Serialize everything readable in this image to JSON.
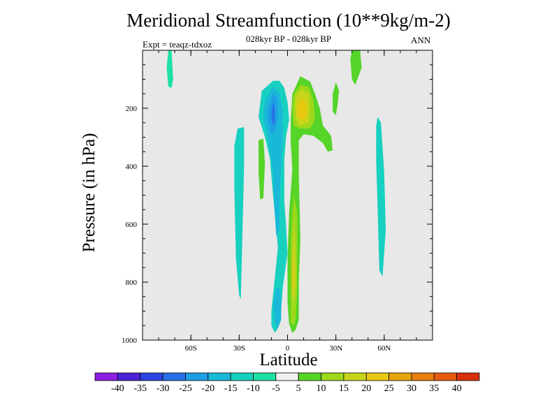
{
  "chart_data": {
    "type": "contour",
    "title": "Meridional Streamfunction (10**9kg/m-2)",
    "subtitle": "028kyr BP - 028kyr BP",
    "experiment": "Expt = teaqz-tdxoz",
    "season": "ANN",
    "xlabel": "Latitude",
    "ylabel": "Pressure (in hPa)",
    "xlim": [
      -90,
      90
    ],
    "ylim": [
      1000,
      0
    ],
    "y_reversed": true,
    "x_ticks": [
      {
        "value": -60,
        "label": "60S"
      },
      {
        "value": -30,
        "label": "30S"
      },
      {
        "value": 0,
        "label": "0"
      },
      {
        "value": 30,
        "label": "30N"
      },
      {
        "value": 60,
        "label": "60N"
      }
    ],
    "y_ticks": [
      {
        "value": 200,
        "label": "200"
      },
      {
        "value": 400,
        "label": "400"
      },
      {
        "value": 600,
        "label": "600"
      },
      {
        "value": 800,
        "label": "800"
      },
      {
        "value": 1000,
        "label": "1000"
      }
    ],
    "background_color": "#e8e8e8",
    "colorbar": {
      "labels": [
        "-40",
        "-35",
        "-30",
        "-25",
        "-20",
        "-15",
        "-10",
        "-5",
        "5",
        "10",
        "15",
        "20",
        "25",
        "30",
        "35",
        "40"
      ],
      "colors": [
        "#8a1fe0",
        "#4a23d8",
        "#2b44e0",
        "#2670e6",
        "#1e9ee4",
        "#1ab8d8",
        "#18d0c0",
        "#1de0a4",
        "#f0f0f0",
        "#56d428",
        "#9ed81a",
        "#c8d41a",
        "#e6c810",
        "#e6a40e",
        "#e67e10",
        "#e65a10",
        "#d8300c"
      ]
    },
    "regions": [
      {
        "fill": 7,
        "pts": [
          [
            -74,
            0
          ],
          [
            -72,
            0
          ],
          [
            -71,
            100
          ],
          [
            -72,
            130
          ],
          [
            -74,
            125
          ],
          [
            -75,
            60
          ]
        ]
      },
      {
        "fill": 9,
        "pts": [
          [
            40,
            0
          ],
          [
            45,
            0
          ],
          [
            46,
            60
          ],
          [
            42,
            120
          ],
          [
            40,
            100
          ],
          [
            39,
            30
          ]
        ]
      },
      {
        "fill": 9,
        "pts": [
          [
            30,
            110
          ],
          [
            32,
            140
          ],
          [
            31,
            190
          ],
          [
            30,
            225
          ],
          [
            28,
            210
          ],
          [
            28,
            150
          ]
        ]
      },
      {
        "fill": 6,
        "pts": [
          [
            -31,
            270
          ],
          [
            -27,
            265
          ],
          [
            -27,
            400
          ],
          [
            -28,
            640
          ],
          [
            -29,
            860
          ],
          [
            -30,
            845
          ],
          [
            -32,
            720
          ],
          [
            -33,
            480
          ],
          [
            -33,
            330
          ]
        ]
      },
      {
        "fill": 9,
        "pts": [
          [
            -18,
            310
          ],
          [
            -15,
            305
          ],
          [
            -14,
            390
          ],
          [
            -15,
            510
          ],
          [
            -17,
            515
          ],
          [
            -18,
            420
          ]
        ]
      },
      {
        "fill": 6,
        "pts": [
          [
            -9,
            105
          ],
          [
            -16,
            140
          ],
          [
            -18,
            230
          ],
          [
            -14,
            300
          ],
          [
            -11,
            370
          ],
          [
            -9,
            500
          ],
          [
            -6,
            680
          ],
          [
            -8,
            790
          ],
          [
            -10,
            900
          ],
          [
            -10,
            950
          ],
          [
            -8,
            975
          ],
          [
            -6,
            960
          ],
          [
            -4,
            900
          ],
          [
            -3,
            820
          ],
          [
            0,
            700
          ],
          [
            -1,
            600
          ],
          [
            -2,
            520
          ],
          [
            -2,
            380
          ],
          [
            -1,
            300
          ],
          [
            1,
            240
          ],
          [
            0,
            180
          ],
          [
            -2,
            130
          ],
          [
            -5,
            105
          ]
        ]
      },
      {
        "fill": 5,
        "pts": [
          [
            -9,
            125
          ],
          [
            -14,
            175
          ],
          [
            -15,
            240
          ],
          [
            -12,
            300
          ],
          [
            -9,
            420
          ],
          [
            -8,
            560
          ],
          [
            -7,
            640
          ],
          [
            -5,
            620
          ],
          [
            -5,
            520
          ],
          [
            -4,
            400
          ],
          [
            -3,
            300
          ],
          [
            -3,
            210
          ],
          [
            -5,
            150
          ]
        ]
      },
      {
        "fill": 5,
        "pts": [
          [
            -7,
            820
          ],
          [
            -9,
            880
          ],
          [
            -8,
            940
          ],
          [
            -6,
            960
          ],
          [
            -4,
            930
          ],
          [
            -4,
            870
          ],
          [
            -5,
            820
          ]
        ]
      },
      {
        "fill": 4,
        "pts": [
          [
            -9,
            150
          ],
          [
            -12,
            200
          ],
          [
            -12,
            250
          ],
          [
            -10,
            290
          ],
          [
            -8,
            280
          ],
          [
            -6,
            240
          ],
          [
            -6,
            190
          ],
          [
            -7,
            160
          ]
        ]
      },
      {
        "fill": 3,
        "pts": [
          [
            -9,
            180
          ],
          [
            -10,
            220
          ],
          [
            -9,
            260
          ],
          [
            -8,
            250
          ],
          [
            -8,
            200
          ]
        ]
      },
      {
        "fill": 9,
        "pts": [
          [
            8,
            90
          ],
          [
            14,
            108
          ],
          [
            17,
            150
          ],
          [
            20,
            200
          ],
          [
            22,
            260
          ],
          [
            27,
            295
          ],
          [
            28,
            345
          ],
          [
            25,
            350
          ],
          [
            22,
            320
          ],
          [
            16,
            295
          ],
          [
            10,
            290
          ],
          [
            7,
            310
          ],
          [
            7,
            430
          ],
          [
            8,
            650
          ],
          [
            7,
            800
          ],
          [
            7,
            930
          ],
          [
            5,
            965
          ],
          [
            3,
            975
          ],
          [
            1,
            945
          ],
          [
            0,
            870
          ],
          [
            0,
            720
          ],
          [
            1,
            560
          ],
          [
            3,
            410
          ],
          [
            2,
            320
          ],
          [
            2,
            240
          ],
          [
            3,
            150
          ]
        ]
      },
      {
        "fill": 10,
        "pts": [
          [
            8,
            120
          ],
          [
            13,
            125
          ],
          [
            16,
            170
          ],
          [
            17,
            240
          ],
          [
            14,
            270
          ],
          [
            8,
            270
          ],
          [
            4,
            260
          ],
          [
            3,
            200
          ],
          [
            4,
            150
          ]
        ]
      },
      {
        "fill": 10,
        "pts": [
          [
            4,
            500
          ],
          [
            6,
            560
          ],
          [
            6,
            700
          ],
          [
            6,
            820
          ],
          [
            5,
            930
          ],
          [
            4,
            950
          ],
          [
            2,
            940
          ],
          [
            2,
            810
          ],
          [
            2,
            670
          ],
          [
            3,
            560
          ]
        ]
      },
      {
        "fill": 11,
        "pts": [
          [
            9,
            135
          ],
          [
            13,
            150
          ],
          [
            14,
            210
          ],
          [
            13,
            250
          ],
          [
            7,
            260
          ],
          [
            5,
            225
          ],
          [
            5,
            175
          ],
          [
            6,
            150
          ]
        ]
      },
      {
        "fill": 11,
        "pts": [
          [
            4,
            600
          ],
          [
            5,
            680
          ],
          [
            5,
            820
          ],
          [
            4,
            870
          ],
          [
            3,
            850
          ],
          [
            3,
            700
          ]
        ]
      },
      {
        "fill": 12,
        "pts": [
          [
            9,
            165
          ],
          [
            12,
            180
          ],
          [
            12,
            225
          ],
          [
            9,
            245
          ],
          [
            6,
            225
          ],
          [
            6,
            190
          ]
        ]
      },
      {
        "fill": 12,
        "pts": [
          [
            3,
            700
          ],
          [
            4,
            760
          ],
          [
            4,
            830
          ],
          [
            3,
            810
          ],
          [
            3,
            740
          ]
        ]
      },
      {
        "fill": 6,
        "pts": [
          [
            56,
            230
          ],
          [
            58,
            250
          ],
          [
            60,
            420
          ],
          [
            61,
            620
          ],
          [
            59,
            780
          ],
          [
            57,
            760
          ],
          [
            56,
            560
          ],
          [
            55,
            380
          ],
          [
            55,
            260
          ]
        ]
      }
    ]
  }
}
